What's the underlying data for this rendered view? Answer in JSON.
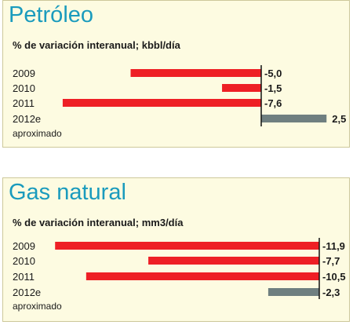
{
  "chart_data": [
    {
      "type": "bar",
      "orientation": "horizontal",
      "title": "Petróleo",
      "subtitle": "% de variación interanual; kbbl/día",
      "categories": [
        "2009",
        "2010",
        "2011",
        "2012e"
      ],
      "values": [
        -5.0,
        -1.5,
        -7.6,
        2.5
      ],
      "value_labels": [
        "-5,0",
        "-1,5",
        "-7,6",
        "2,5"
      ],
      "footnote": "aproximado",
      "colors": {
        "actual": "#ee1f25",
        "estimate": "#6f7f80",
        "background": "#fdfbe1",
        "title": "#1a9bbd"
      },
      "grid": false,
      "legend": "none"
    },
    {
      "type": "bar",
      "orientation": "horizontal",
      "title": "Gas natural",
      "subtitle": "% de variación interanual; mm3/día",
      "categories": [
        "2009",
        "2010",
        "2011",
        "2012e"
      ],
      "values": [
        -11.9,
        -7.7,
        -10.5,
        -2.3
      ],
      "value_labels": [
        "-11,9",
        "-7,7",
        "-10,5",
        "-2,3"
      ],
      "footnote": "aproximado",
      "colors": {
        "actual": "#ee1f25",
        "estimate": "#6f7f80",
        "background": "#fdfbe1",
        "title": "#1a9bbd"
      },
      "grid": false,
      "legend": "none"
    }
  ]
}
